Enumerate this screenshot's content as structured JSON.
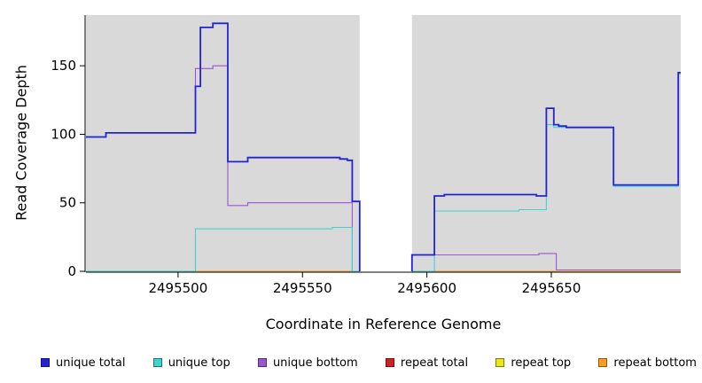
{
  "figure": {
    "background": "#ffffff",
    "plot_background": "#d9d9d9"
  },
  "chart_data": {
    "type": "line",
    "title": "",
    "xlabel": "Coordinate in Reference Genome",
    "ylabel": "Read Coverage Depth",
    "xlim": [
      2495463,
      2495702
    ],
    "ylim": [
      0,
      187
    ],
    "x_ticks": [
      2495500,
      2495550,
      2495600,
      2495650
    ],
    "y_ticks": [
      0,
      50,
      100,
      150
    ],
    "grid": false,
    "plot_background": "#d9d9d9",
    "masked_region": {
      "start": 2495573,
      "end": 2495594,
      "color": "#ffffff"
    },
    "legend_position": "bottom",
    "series": [
      {
        "name": "repeat total",
        "color": "#cc2222",
        "width": 1.1,
        "segments": [
          [
            [
              2495463,
              0
            ],
            [
              2495573,
              0
            ]
          ],
          [
            [
              2495594,
              0
            ],
            [
              2495702,
              0
            ]
          ]
        ]
      },
      {
        "name": "repeat top",
        "color": "#e8e818",
        "width": 1.1,
        "segments": [
          [
            [
              2495463,
              0
            ],
            [
              2495573,
              0
            ]
          ],
          [
            [
              2495594,
              0
            ],
            [
              2495702,
              0
            ]
          ]
        ]
      },
      {
        "name": "repeat bottom",
        "color": "#ff9e1b",
        "width": 1.1,
        "segments": [
          [
            [
              2495463,
              0
            ],
            [
              2495573,
              0
            ]
          ],
          [
            [
              2495594,
              0
            ],
            [
              2495702,
              0
            ]
          ]
        ]
      },
      {
        "name": "unique bottom",
        "color": "#9a55d0",
        "width": 1.1,
        "segments": [
          [
            [
              2495463,
              98
            ],
            [
              2495471,
              98
            ],
            [
              2495471,
              101
            ],
            [
              2495507,
              101
            ],
            [
              2495507,
              148
            ],
            [
              2495514,
              148
            ],
            [
              2495514,
              150
            ],
            [
              2495520,
              150
            ],
            [
              2495520,
              48
            ],
            [
              2495528,
              48
            ],
            [
              2495528,
              50
            ],
            [
              2495570,
              50
            ],
            [
              2495570,
              0
            ],
            [
              2495573,
              0
            ]
          ],
          [
            [
              2495594,
              0
            ],
            [
              2495594,
              12
            ],
            [
              2495645,
              12
            ],
            [
              2495645,
              13
            ],
            [
              2495652,
              13
            ],
            [
              2495652,
              1
            ],
            [
              2495702,
              1
            ]
          ]
        ]
      },
      {
        "name": "unique top",
        "color": "#3fd4cf",
        "width": 1.1,
        "segments": [
          [
            [
              2495463,
              0
            ],
            [
              2495507,
              0
            ],
            [
              2495507,
              31
            ],
            [
              2495562,
              31
            ],
            [
              2495562,
              32
            ],
            [
              2495570,
              32
            ],
            [
              2495570,
              0
            ],
            [
              2495573,
              0
            ]
          ],
          [
            [
              2495594,
              0
            ],
            [
              2495603,
              0
            ],
            [
              2495603,
              44
            ],
            [
              2495637,
              44
            ],
            [
              2495637,
              45
            ],
            [
              2495648,
              45
            ],
            [
              2495648,
              107
            ],
            [
              2495651,
              107
            ],
            [
              2495651,
              105
            ],
            [
              2495675,
              105
            ],
            [
              2495675,
              62
            ],
            [
              2495701,
              62
            ],
            [
              2495701,
              144
            ],
            [
              2495702,
              144
            ]
          ]
        ]
      },
      {
        "name": "unique total",
        "color": "#2323d3",
        "width": 1.8,
        "segments": [
          [
            [
              2495463,
              98
            ],
            [
              2495471,
              98
            ],
            [
              2495471,
              101
            ],
            [
              2495507,
              101
            ],
            [
              2495507,
              135
            ],
            [
              2495509,
              135
            ],
            [
              2495509,
              178
            ],
            [
              2495514,
              178
            ],
            [
              2495514,
              181
            ],
            [
              2495520,
              181
            ],
            [
              2495520,
              80
            ],
            [
              2495528,
              80
            ],
            [
              2495528,
              83
            ],
            [
              2495565,
              83
            ],
            [
              2495565,
              82
            ],
            [
              2495568,
              82
            ],
            [
              2495568,
              81
            ],
            [
              2495570,
              81
            ],
            [
              2495570,
              51
            ],
            [
              2495573,
              51
            ],
            [
              2495573,
              0
            ]
          ],
          [
            [
              2495594,
              0
            ],
            [
              2495594,
              12
            ],
            [
              2495603,
              12
            ],
            [
              2495603,
              55
            ],
            [
              2495607,
              55
            ],
            [
              2495607,
              56
            ],
            [
              2495644,
              56
            ],
            [
              2495644,
              55
            ],
            [
              2495648,
              55
            ],
            [
              2495648,
              119
            ],
            [
              2495651,
              119
            ],
            [
              2495651,
              107
            ],
            [
              2495653,
              107
            ],
            [
              2495653,
              106
            ],
            [
              2495656,
              106
            ],
            [
              2495656,
              105
            ],
            [
              2495675,
              105
            ],
            [
              2495675,
              63
            ],
            [
              2495701,
              63
            ],
            [
              2495701,
              145
            ],
            [
              2495702,
              145
            ]
          ]
        ]
      }
    ]
  },
  "legend": {
    "items": [
      {
        "label": "unique total",
        "color": "#2323d3"
      },
      {
        "label": "unique top",
        "color": "#3fd4cf"
      },
      {
        "label": "unique bottom",
        "color": "#9a55d0"
      },
      {
        "label": "repeat total",
        "color": "#cc2222"
      },
      {
        "label": "repeat top",
        "color": "#e8e818"
      },
      {
        "label": "repeat bottom",
        "color": "#ff9e1b"
      }
    ]
  }
}
